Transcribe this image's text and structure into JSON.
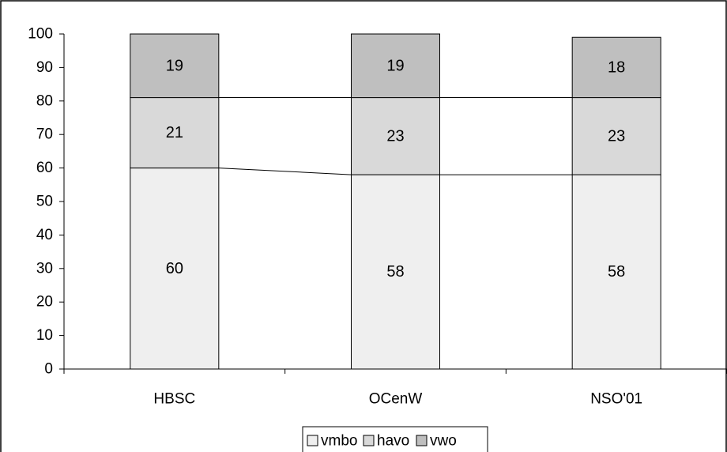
{
  "chart_data": {
    "type": "bar",
    "stacked": true,
    "categories": [
      "HBSC",
      "OCenW",
      "NSO'01"
    ],
    "series": [
      {
        "name": "vmbo",
        "values": [
          60,
          58,
          58
        ],
        "color": "#efefef"
      },
      {
        "name": "havo",
        "values": [
          21,
          23,
          23
        ],
        "color": "#d9d9d9"
      },
      {
        "name": "vwo",
        "values": [
          19,
          19,
          18
        ],
        "color": "#bfbfbf"
      }
    ],
    "title": "",
    "xlabel": "",
    "ylabel": "",
    "ylim": [
      0,
      100
    ],
    "yticks": [
      "0",
      "10",
      "20",
      "30",
      "40",
      "50",
      "60",
      "70",
      "80",
      "90",
      "100"
    ],
    "grid": false,
    "series_lines": true,
    "legend_position": "bottom"
  }
}
